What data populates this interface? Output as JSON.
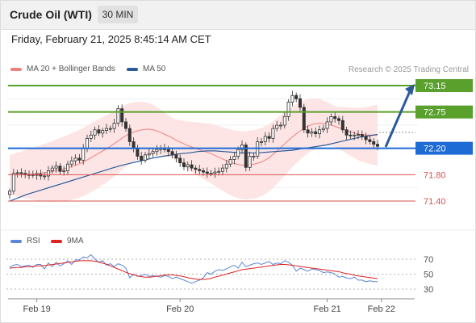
{
  "header": {
    "title": "Crude Oil (WTI)",
    "timeframe": "30 MIN"
  },
  "datetime": "Friday, February 21, 2025 8:45:14 AM CET",
  "legend": {
    "ma20_label": "MA 20 + Bollinger Bands",
    "ma50_label": "MA 50",
    "ma20_color": "#f08080",
    "ma50_color": "#2a5b9a",
    "rsi_label": "RSI",
    "nine_ma_label": "9MA",
    "rsi_color": "#5b87d6",
    "nine_ma_color": "#dd2222"
  },
  "credit": "Research © 2025 Trading Central",
  "chart_data": [
    {
      "type": "candlestick",
      "title": "",
      "ylim": [
        71.3,
        73.25
      ],
      "x_ticks": [
        {
          "label": "Feb 19",
          "index": 7
        },
        {
          "label": "Feb 20",
          "index": 44
        },
        {
          "label": "Feb 21",
          "index": 82
        },
        {
          "label": "Feb 22",
          "index": 96
        }
      ],
      "close_path": [
        71.55,
        71.82,
        71.83,
        71.82,
        71.8,
        71.8,
        71.79,
        71.81,
        71.78,
        71.78,
        71.86,
        71.9,
        71.93,
        71.85,
        71.86,
        71.96,
        72.01,
        72.05,
        72.02,
        72.2,
        72.35,
        72.4,
        72.48,
        72.43,
        72.47,
        72.5,
        72.5,
        72.58,
        72.8,
        72.6,
        72.5,
        72.3,
        72.2,
        72.08,
        72.02,
        72.1,
        72.12,
        72.15,
        72.18,
        72.2,
        72.18,
        72.15,
        72.1,
        72.05,
        71.98,
        71.92,
        71.95,
        71.9,
        71.88,
        71.86,
        71.84,
        71.82,
        71.82,
        71.84,
        71.85,
        71.9,
        71.96,
        72.03,
        72.08,
        72.18,
        72.25,
        71.91,
        72.08,
        72.08,
        72.3,
        72.3,
        72.38,
        72.35,
        72.5,
        72.55,
        72.55,
        72.68,
        72.9,
        73.0,
        72.95,
        72.82,
        72.48,
        72.43,
        72.45,
        72.42,
        72.48,
        72.5,
        72.6,
        72.68,
        72.65,
        72.62,
        72.48,
        72.4,
        72.39,
        72.4,
        72.41,
        72.38,
        72.33,
        72.3,
        72.26,
        72.23
      ],
      "ma20": [
        71.8,
        71.8,
        71.8,
        71.81,
        71.81,
        71.82,
        71.83,
        71.84,
        71.86,
        71.88,
        71.9,
        71.93,
        71.96,
        72.0,
        72.05,
        72.1,
        72.15,
        72.2,
        72.26,
        72.32,
        72.38,
        72.43,
        72.46,
        72.48,
        72.49,
        72.48,
        72.45,
        72.41,
        72.37,
        72.32,
        72.28,
        72.24,
        72.21,
        72.18,
        72.15,
        72.12,
        72.08,
        72.04,
        72.0,
        71.97,
        71.95,
        71.94,
        71.95,
        71.97,
        72.0,
        72.05,
        72.12,
        72.2,
        72.28,
        72.36,
        72.43,
        72.49,
        72.54,
        72.57,
        72.58,
        72.57,
        72.55,
        72.52,
        72.49,
        72.46,
        72.43,
        72.41,
        72.4,
        72.4,
        72.4
      ],
      "ma50": [
        71.4,
        71.45,
        71.5,
        71.54,
        71.58,
        71.62,
        71.66,
        71.7,
        71.74,
        71.78,
        71.82,
        71.86,
        71.9,
        71.94,
        71.97,
        72.0,
        72.03,
        72.06,
        72.08,
        72.1,
        72.12,
        72.13,
        72.15,
        72.16,
        72.16,
        72.15,
        72.14,
        72.13,
        72.13,
        72.13,
        72.14,
        72.15,
        72.16,
        72.17,
        72.19,
        72.21,
        72.23,
        72.25,
        72.28,
        72.31,
        72.34,
        72.37,
        72.39,
        72.41
      ],
      "levels": [
        {
          "value": 73.15,
          "label": "73.15",
          "style": "resistance",
          "color": "#5aa02c"
        },
        {
          "value": 72.75,
          "label": "72.75",
          "style": "resistance",
          "color": "#5aa02c"
        },
        {
          "value": 72.2,
          "label": "72.20",
          "style": "pivot",
          "color": "#1f6bd6"
        },
        {
          "value": 71.8,
          "label": "71.80",
          "style": "support",
          "color": "#d9534f"
        },
        {
          "value": 71.4,
          "label": "71.40",
          "style": "support",
          "color": "#d9534f"
        }
      ],
      "arrow": {
        "from": 72.22,
        "to": 73.15,
        "color": "#2a5b9a"
      }
    },
    {
      "type": "line",
      "title": "",
      "ylim": [
        20,
        80
      ],
      "y_ticks": [
        70,
        50,
        30
      ],
      "series": [
        {
          "name": "RSI",
          "values": [
            59,
            62,
            63,
            60,
            61,
            62,
            59,
            63,
            63,
            57,
            65,
            60,
            66,
            61,
            64,
            68,
            63,
            69,
            69,
            73,
            72,
            76,
            70,
            66,
            68,
            62,
            64,
            60,
            64,
            62,
            58,
            45,
            50,
            47,
            48,
            50,
            47,
            48,
            47,
            46,
            48,
            47,
            44,
            46,
            44,
            42,
            40,
            38,
            40,
            42,
            45,
            52,
            50,
            54,
            56,
            55,
            57,
            60,
            62,
            58,
            66,
            60,
            62,
            64,
            65,
            63,
            65,
            67,
            63,
            65,
            64,
            68,
            66,
            62,
            54,
            58,
            56,
            54,
            57,
            56,
            55,
            52,
            53,
            52,
            50,
            46,
            47,
            45,
            44,
            46,
            42,
            42,
            40,
            41,
            40,
            40
          ]
        },
        {
          "name": "9MA",
          "values": [
            58,
            59,
            59,
            60,
            60,
            61,
            61,
            62,
            63,
            64,
            65,
            66,
            67,
            68,
            68,
            68,
            67,
            65,
            63,
            60,
            57,
            54,
            51,
            49,
            47,
            46,
            46,
            47,
            48,
            49,
            49,
            48,
            47,
            45,
            44,
            43,
            43,
            44,
            46,
            48,
            50,
            52,
            54,
            56,
            57,
            58,
            59,
            60,
            61,
            62,
            63,
            63,
            62,
            61,
            60,
            59,
            58,
            57,
            56,
            55,
            54,
            53,
            51,
            50,
            48,
            47,
            46,
            45,
            44
          ]
        }
      ]
    }
  ]
}
